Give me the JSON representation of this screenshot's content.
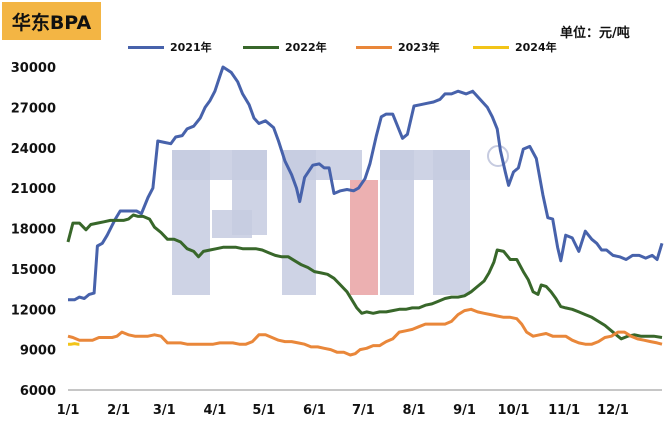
{
  "header": {
    "title": "华东BPA",
    "unit": "单位：元/吨"
  },
  "colors": {
    "title_bg": "#f3b544",
    "s2021": "#4762ab",
    "s2022": "#38672a",
    "s2023": "#e9873a",
    "s2024": "#f2c418",
    "watermark_blue": "#c6cbe0",
    "watermark_red": "#eaa7a9"
  },
  "chart_data": {
    "type": "line",
    "title": "华东BPA",
    "ylabel": "",
    "xlabel": "",
    "ylim": [
      6000,
      30000
    ],
    "yticks": [
      6000,
      9000,
      12000,
      15000,
      18000,
      21000,
      24000,
      27000,
      30000
    ],
    "xlim": [
      1,
      365
    ],
    "x_ticks": [
      {
        "label": "1/1",
        "day": 1
      },
      {
        "label": "2/1",
        "day": 32
      },
      {
        "label": "3/1",
        "day": 60
      },
      {
        "label": "4/1",
        "day": 91
      },
      {
        "label": "5/1",
        "day": 121
      },
      {
        "label": "6/1",
        "day": 152
      },
      {
        "label": "7/1",
        "day": 182
      },
      {
        "label": "8/1",
        "day": 213
      },
      {
        "label": "9/1",
        "day": 244
      },
      {
        "label": "10/1",
        "day": 274
      },
      {
        "label": "11/1",
        "day": 305
      },
      {
        "label": "12/1",
        "day": 335
      }
    ],
    "legend_position": "top",
    "series": [
      {
        "name": "2021年",
        "color": "#4762ab",
        "points": [
          [
            1,
            12700
          ],
          [
            5,
            12700
          ],
          [
            8,
            12900
          ],
          [
            11,
            12800
          ],
          [
            14,
            13100
          ],
          [
            17,
            13200
          ],
          [
            19,
            16700
          ],
          [
            22,
            16900
          ],
          [
            25,
            17500
          ],
          [
            30,
            18700
          ],
          [
            33,
            19300
          ],
          [
            37,
            19300
          ],
          [
            43,
            19300
          ],
          [
            46,
            19100
          ],
          [
            50,
            20300
          ],
          [
            53,
            21000
          ],
          [
            56,
            24500
          ],
          [
            60,
            24400
          ],
          [
            64,
            24300
          ],
          [
            67,
            24800
          ],
          [
            71,
            24900
          ],
          [
            74,
            25400
          ],
          [
            78,
            25600
          ],
          [
            82,
            26200
          ],
          [
            85,
            27000
          ],
          [
            88,
            27500
          ],
          [
            91,
            28200
          ],
          [
            94,
            29300
          ],
          [
            96,
            30000
          ],
          [
            101,
            29600
          ],
          [
            105,
            28900
          ],
          [
            108,
            28000
          ],
          [
            112,
            27200
          ],
          [
            115,
            26200
          ],
          [
            118,
            25800
          ],
          [
            122,
            26000
          ],
          [
            127,
            25500
          ],
          [
            130,
            24500
          ],
          [
            134,
            23000
          ],
          [
            138,
            22000
          ],
          [
            141,
            21000
          ],
          [
            143,
            20000
          ],
          [
            146,
            21800
          ],
          [
            151,
            22700
          ],
          [
            155,
            22800
          ],
          [
            158,
            22500
          ],
          [
            161,
            22500
          ],
          [
            164,
            20600
          ],
          [
            168,
            20800
          ],
          [
            172,
            20900
          ],
          [
            176,
            20800
          ],
          [
            179,
            21000
          ],
          [
            183,
            21700
          ],
          [
            186,
            22800
          ],
          [
            190,
            24900
          ],
          [
            193,
            26300
          ],
          [
            196,
            26500
          ],
          [
            200,
            26500
          ],
          [
            203,
            25600
          ],
          [
            206,
            24700
          ],
          [
            209,
            25000
          ],
          [
            213,
            27100
          ],
          [
            217,
            27200
          ],
          [
            221,
            27300
          ],
          [
            225,
            27400
          ],
          [
            229,
            27600
          ],
          [
            232,
            28000
          ],
          [
            236,
            28000
          ],
          [
            240,
            28200
          ],
          [
            245,
            28000
          ],
          [
            249,
            28200
          ],
          [
            252,
            27800
          ],
          [
            255,
            27400
          ],
          [
            258,
            27000
          ],
          [
            261,
            26300
          ],
          [
            264,
            25400
          ],
          [
            266,
            23800
          ],
          [
            269,
            22200
          ],
          [
            271,
            21200
          ],
          [
            274,
            22200
          ],
          [
            277,
            22500
          ],
          [
            280,
            23900
          ],
          [
            284,
            24100
          ],
          [
            288,
            23200
          ],
          [
            292,
            20500
          ],
          [
            295,
            18800
          ],
          [
            298,
            18700
          ],
          [
            301,
            16600
          ],
          [
            303,
            15600
          ],
          [
            306,
            17500
          ],
          [
            310,
            17300
          ],
          [
            314,
            16300
          ],
          [
            318,
            17800
          ],
          [
            322,
            17200
          ],
          [
            325,
            16900
          ],
          [
            328,
            16400
          ],
          [
            331,
            16400
          ],
          [
            335,
            16000
          ],
          [
            339,
            15900
          ],
          [
            343,
            15700
          ],
          [
            347,
            16000
          ],
          [
            351,
            16000
          ],
          [
            355,
            15800
          ],
          [
            359,
            16000
          ],
          [
            362,
            15700
          ],
          [
            365,
            16900
          ]
        ]
      },
      {
        "name": "2022年",
        "color": "#38672a",
        "points": [
          [
            1,
            17000
          ],
          [
            4,
            18400
          ],
          [
            8,
            18400
          ],
          [
            12,
            17900
          ],
          [
            15,
            18300
          ],
          [
            19,
            18400
          ],
          [
            23,
            18500
          ],
          [
            27,
            18600
          ],
          [
            31,
            18600
          ],
          [
            35,
            18600
          ],
          [
            38,
            18700
          ],
          [
            41,
            19000
          ],
          [
            44,
            18900
          ],
          [
            47,
            18900
          ],
          [
            51,
            18700
          ],
          [
            54,
            18100
          ],
          [
            58,
            17700
          ],
          [
            62,
            17200
          ],
          [
            66,
            17200
          ],
          [
            70,
            17000
          ],
          [
            74,
            16500
          ],
          [
            78,
            16300
          ],
          [
            81,
            15900
          ],
          [
            84,
            16300
          ],
          [
            88,
            16400
          ],
          [
            92,
            16500
          ],
          [
            96,
            16600
          ],
          [
            100,
            16600
          ],
          [
            104,
            16600
          ],
          [
            108,
            16500
          ],
          [
            112,
            16500
          ],
          [
            116,
            16500
          ],
          [
            120,
            16400
          ],
          [
            124,
            16200
          ],
          [
            128,
            16000
          ],
          [
            132,
            15900
          ],
          [
            136,
            15900
          ],
          [
            140,
            15600
          ],
          [
            144,
            15300
          ],
          [
            148,
            15100
          ],
          [
            152,
            14800
          ],
          [
            156,
            14700
          ],
          [
            160,
            14600
          ],
          [
            164,
            14300
          ],
          [
            168,
            13800
          ],
          [
            172,
            13300
          ],
          [
            175,
            12700
          ],
          [
            178,
            12100
          ],
          [
            181,
            11700
          ],
          [
            184,
            11800
          ],
          [
            188,
            11700
          ],
          [
            192,
            11800
          ],
          [
            196,
            11800
          ],
          [
            200,
            11900
          ],
          [
            204,
            12000
          ],
          [
            208,
            12000
          ],
          [
            212,
            12100
          ],
          [
            216,
            12100
          ],
          [
            220,
            12300
          ],
          [
            224,
            12400
          ],
          [
            228,
            12600
          ],
          [
            232,
            12800
          ],
          [
            236,
            12900
          ],
          [
            240,
            12900
          ],
          [
            244,
            13000
          ],
          [
            248,
            13300
          ],
          [
            252,
            13700
          ],
          [
            256,
            14100
          ],
          [
            259,
            14700
          ],
          [
            262,
            15500
          ],
          [
            264,
            16400
          ],
          [
            268,
            16300
          ],
          [
            272,
            15700
          ],
          [
            276,
            15700
          ],
          [
            280,
            14800
          ],
          [
            283,
            14200
          ],
          [
            286,
            13300
          ],
          [
            289,
            13100
          ],
          [
            291,
            13800
          ],
          [
            294,
            13700
          ],
          [
            297,
            13300
          ],
          [
            300,
            12800
          ],
          [
            303,
            12200
          ],
          [
            306,
            12100
          ],
          [
            310,
            12000
          ],
          [
            314,
            11800
          ],
          [
            318,
            11600
          ],
          [
            322,
            11400
          ],
          [
            326,
            11100
          ],
          [
            330,
            10800
          ],
          [
            334,
            10400
          ],
          [
            338,
            10000
          ],
          [
            340,
            9800
          ],
          [
            344,
            10000
          ],
          [
            348,
            10100
          ],
          [
            352,
            10000
          ],
          [
            356,
            10000
          ],
          [
            360,
            10000
          ],
          [
            365,
            9900
          ]
        ]
      },
      {
        "name": "2023年",
        "color": "#e9873a",
        "points": [
          [
            1,
            10000
          ],
          [
            4,
            9900
          ],
          [
            8,
            9700
          ],
          [
            12,
            9700
          ],
          [
            16,
            9700
          ],
          [
            20,
            9900
          ],
          [
            24,
            9900
          ],
          [
            28,
            9900
          ],
          [
            31,
            10000
          ],
          [
            34,
            10300
          ],
          [
            38,
            10100
          ],
          [
            42,
            10000
          ],
          [
            46,
            10000
          ],
          [
            50,
            10000
          ],
          [
            54,
            10100
          ],
          [
            58,
            10000
          ],
          [
            62,
            9500
          ],
          [
            66,
            9500
          ],
          [
            70,
            9500
          ],
          [
            74,
            9400
          ],
          [
            78,
            9400
          ],
          [
            82,
            9400
          ],
          [
            86,
            9400
          ],
          [
            90,
            9400
          ],
          [
            94,
            9500
          ],
          [
            98,
            9500
          ],
          [
            102,
            9500
          ],
          [
            106,
            9400
          ],
          [
            110,
            9400
          ],
          [
            114,
            9600
          ],
          [
            118,
            10100
          ],
          [
            122,
            10100
          ],
          [
            126,
            9900
          ],
          [
            130,
            9700
          ],
          [
            134,
            9600
          ],
          [
            138,
            9600
          ],
          [
            142,
            9500
          ],
          [
            146,
            9400
          ],
          [
            150,
            9200
          ],
          [
            154,
            9200
          ],
          [
            158,
            9100
          ],
          [
            162,
            9000
          ],
          [
            166,
            8800
          ],
          [
            170,
            8800
          ],
          [
            174,
            8600
          ],
          [
            177,
            8700
          ],
          [
            180,
            9000
          ],
          [
            184,
            9100
          ],
          [
            188,
            9300
          ],
          [
            192,
            9300
          ],
          [
            196,
            9600
          ],
          [
            200,
            9800
          ],
          [
            204,
            10300
          ],
          [
            208,
            10400
          ],
          [
            212,
            10500
          ],
          [
            216,
            10700
          ],
          [
            220,
            10900
          ],
          [
            224,
            10900
          ],
          [
            228,
            10900
          ],
          [
            232,
            10900
          ],
          [
            236,
            11100
          ],
          [
            240,
            11600
          ],
          [
            244,
            11900
          ],
          [
            248,
            12000
          ],
          [
            252,
            11800
          ],
          [
            256,
            11700
          ],
          [
            260,
            11600
          ],
          [
            264,
            11500
          ],
          [
            268,
            11400
          ],
          [
            272,
            11400
          ],
          [
            276,
            11300
          ],
          [
            279,
            10900
          ],
          [
            282,
            10300
          ],
          [
            286,
            10000
          ],
          [
            290,
            10100
          ],
          [
            294,
            10200
          ],
          [
            298,
            10000
          ],
          [
            302,
            10000
          ],
          [
            306,
            10000
          ],
          [
            310,
            9700
          ],
          [
            314,
            9500
          ],
          [
            318,
            9400
          ],
          [
            322,
            9400
          ],
          [
            326,
            9600
          ],
          [
            330,
            9900
          ],
          [
            334,
            10000
          ],
          [
            338,
            10300
          ],
          [
            342,
            10300
          ],
          [
            346,
            10000
          ],
          [
            350,
            9800
          ],
          [
            354,
            9700
          ],
          [
            358,
            9600
          ],
          [
            362,
            9500
          ],
          [
            365,
            9400
          ]
        ]
      },
      {
        "name": "2024年",
        "color": "#f2c418",
        "points": [
          [
            1,
            9400
          ],
          [
            3,
            9400
          ],
          [
            5,
            9450
          ],
          [
            7,
            9400
          ],
          [
            8,
            9400
          ]
        ]
      }
    ]
  }
}
